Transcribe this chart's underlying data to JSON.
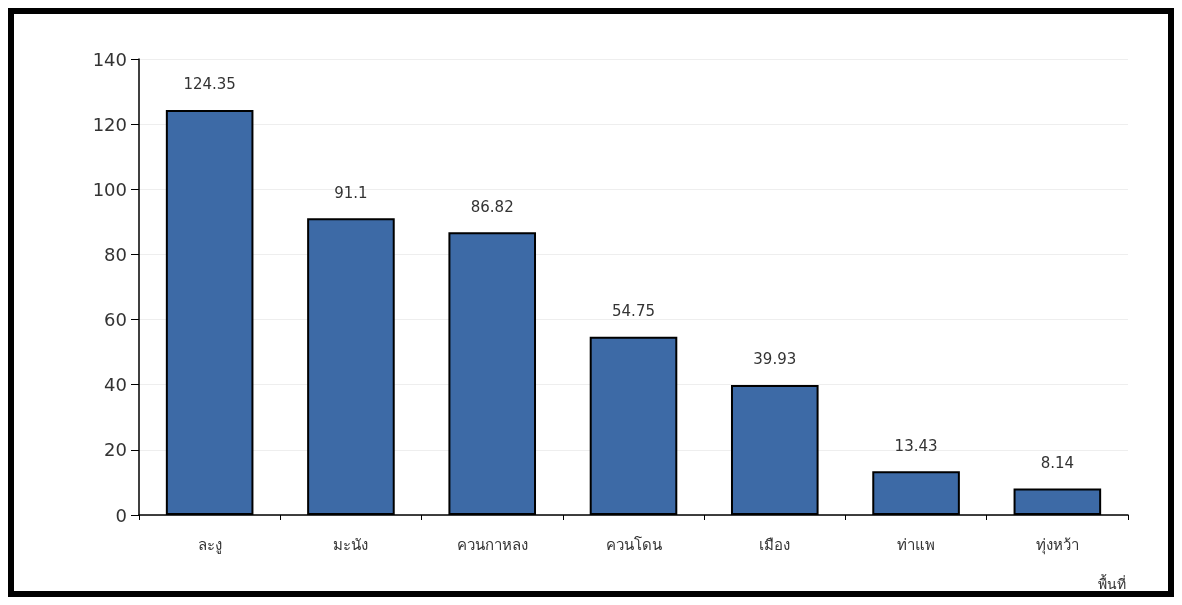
{
  "chart_data": {
    "type": "bar",
    "xlabel": "พื้นที่",
    "categories": [
      "ละงู",
      "มะนัง",
      "ควนกาหลง",
      "ควนโดน",
      "เมือง",
      "ท่าแพ",
      "ทุ่งหว้า"
    ],
    "values": [
      124.35,
      91.1,
      86.82,
      54.75,
      39.93,
      13.43,
      8.14
    ],
    "color": "#3d6aa6",
    "ylim": [
      0,
      140
    ],
    "yticks": [
      0,
      20,
      40,
      60,
      80,
      100,
      120,
      140
    ],
    "grid": "y",
    "data_labels": true
  }
}
